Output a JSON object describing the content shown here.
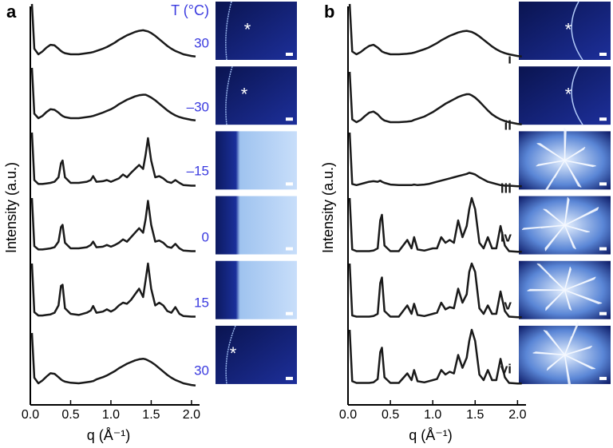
{
  "chart_data": [
    {
      "type": "line",
      "panel": "a",
      "header": "T (°C)",
      "xlabel": "q (Å⁻¹)",
      "ylabel": "Intensity (a.u.)",
      "xlim": [
        0,
        2.1
      ],
      "xticks": [
        {
          "value": 0,
          "label": "0.0"
        },
        {
          "value": 0.5,
          "label": "0.5"
        },
        {
          "value": 1,
          "label": "1.0"
        },
        {
          "value": 1.5,
          "label": "1.5"
        },
        {
          "value": 2,
          "label": "2.0"
        }
      ],
      "annotation": "*",
      "label_color": "#3a3adf",
      "color": "#1a1a1a",
      "x": [
        0.02,
        0.05,
        0.1,
        0.15,
        0.2,
        0.25,
        0.3,
        0.35,
        0.38,
        0.4,
        0.43,
        0.5,
        0.6,
        0.7,
        0.75,
        0.78,
        0.82,
        0.9,
        0.95,
        1.0,
        1.05,
        1.1,
        1.15,
        1.2,
        1.25,
        1.3,
        1.35,
        1.4,
        1.43,
        1.46,
        1.5,
        1.55,
        1.6,
        1.65,
        1.7,
        1.75,
        1.8,
        1.85,
        1.9,
        2.0,
        2.05
      ],
      "series": [
        {
          "name": "30",
          "values": [
            1.0,
            0.2,
            0.1,
            0.15,
            0.22,
            0.27,
            0.26,
            0.2,
            0.16,
            0.14,
            0.12,
            0.1,
            0.1,
            0.12,
            0.13,
            0.14,
            0.16,
            0.2,
            0.23,
            0.27,
            0.31,
            0.36,
            0.4,
            0.44,
            0.47,
            0.5,
            0.52,
            0.53,
            0.52,
            0.51,
            0.48,
            0.43,
            0.37,
            0.31,
            0.25,
            0.2,
            0.16,
            0.13,
            0.1,
            0.07,
            0.06
          ]
        },
        {
          "name": "–30",
          "values": [
            1.0,
            0.18,
            0.1,
            0.14,
            0.21,
            0.26,
            0.25,
            0.2,
            0.16,
            0.14,
            0.12,
            0.1,
            0.1,
            0.12,
            0.13,
            0.14,
            0.16,
            0.2,
            0.23,
            0.26,
            0.3,
            0.35,
            0.39,
            0.43,
            0.46,
            0.49,
            0.51,
            0.52,
            0.52,
            0.5,
            0.47,
            0.42,
            0.36,
            0.3,
            0.24,
            0.19,
            0.15,
            0.12,
            0.1,
            0.07,
            0.06
          ]
        },
        {
          "name": "–15",
          "values": [
            1.0,
            0.15,
            0.08,
            0.08,
            0.09,
            0.1,
            0.12,
            0.2,
            0.45,
            0.5,
            0.2,
            0.1,
            0.1,
            0.12,
            0.15,
            0.22,
            0.12,
            0.13,
            0.15,
            0.12,
            0.15,
            0.18,
            0.25,
            0.2,
            0.28,
            0.35,
            0.42,
            0.35,
            0.6,
            0.9,
            0.5,
            0.2,
            0.22,
            0.18,
            0.12,
            0.1,
            0.15,
            0.1,
            0.06,
            0.05,
            0.05
          ]
        },
        {
          "name": "0",
          "values": [
            1.0,
            0.14,
            0.08,
            0.08,
            0.09,
            0.1,
            0.12,
            0.22,
            0.48,
            0.52,
            0.2,
            0.1,
            0.1,
            0.12,
            0.16,
            0.22,
            0.12,
            0.13,
            0.16,
            0.13,
            0.16,
            0.2,
            0.26,
            0.22,
            0.3,
            0.38,
            0.46,
            0.38,
            0.62,
            0.95,
            0.52,
            0.22,
            0.24,
            0.2,
            0.13,
            0.11,
            0.18,
            0.1,
            0.06,
            0.05,
            0.05
          ]
        },
        {
          "name": "15",
          "values": [
            1.0,
            0.13,
            0.07,
            0.07,
            0.08,
            0.09,
            0.12,
            0.25,
            0.6,
            0.62,
            0.2,
            0.1,
            0.08,
            0.12,
            0.16,
            0.24,
            0.12,
            0.14,
            0.18,
            0.14,
            0.18,
            0.25,
            0.3,
            0.28,
            0.35,
            0.45,
            0.55,
            0.4,
            0.7,
            1.0,
            0.55,
            0.25,
            0.3,
            0.25,
            0.15,
            0.12,
            0.22,
            0.1,
            0.06,
            0.05,
            0.05
          ]
        },
        {
          "name": "30",
          "values": [
            1.0,
            0.2,
            0.1,
            0.15,
            0.22,
            0.28,
            0.27,
            0.21,
            0.17,
            0.15,
            0.13,
            0.11,
            0.1,
            0.12,
            0.13,
            0.14,
            0.17,
            0.21,
            0.24,
            0.28,
            0.32,
            0.37,
            0.41,
            0.45,
            0.48,
            0.51,
            0.53,
            0.54,
            0.53,
            0.51,
            0.48,
            0.43,
            0.37,
            0.31,
            0.25,
            0.2,
            0.16,
            0.13,
            0.1,
            0.07,
            0.06
          ]
        }
      ]
    },
    {
      "type": "line",
      "panel": "b",
      "xlabel": "q (Å⁻¹)",
      "ylabel": "Intensity (a.u.)",
      "xlim": [
        0,
        2.1
      ],
      "xticks": [
        {
          "value": 0,
          "label": "0.0"
        },
        {
          "value": 0.5,
          "label": "0.5"
        },
        {
          "value": 1,
          "label": "1.0"
        },
        {
          "value": 1.5,
          "label": "1.5"
        },
        {
          "value": 2,
          "label": "2.0"
        }
      ],
      "annotation": "*",
      "label_color": "#1a1a1a",
      "color": "#1a1a1a",
      "x": [
        0.02,
        0.05,
        0.1,
        0.15,
        0.2,
        0.25,
        0.3,
        0.35,
        0.38,
        0.4,
        0.43,
        0.5,
        0.6,
        0.7,
        0.75,
        0.78,
        0.82,
        0.9,
        0.95,
        1.0,
        1.05,
        1.1,
        1.15,
        1.2,
        1.25,
        1.3,
        1.35,
        1.4,
        1.43,
        1.46,
        1.5,
        1.55,
        1.6,
        1.65,
        1.7,
        1.75,
        1.8,
        1.85,
        1.9,
        2.0,
        2.05
      ],
      "series": [
        {
          "name": "i",
          "values": [
            1.0,
            0.15,
            0.1,
            0.14,
            0.2,
            0.25,
            0.27,
            0.22,
            0.18,
            0.15,
            0.13,
            0.1,
            0.1,
            0.11,
            0.12,
            0.13,
            0.15,
            0.19,
            0.22,
            0.26,
            0.3,
            0.35,
            0.39,
            0.43,
            0.46,
            0.49,
            0.51,
            0.52,
            0.51,
            0.5,
            0.47,
            0.42,
            0.36,
            0.3,
            0.24,
            0.19,
            0.15,
            0.12,
            0.1,
            0.07,
            0.06
          ]
        },
        {
          "name": "ii",
          "values": [
            1.0,
            0.15,
            0.1,
            0.14,
            0.21,
            0.27,
            0.29,
            0.24,
            0.19,
            0.16,
            0.13,
            0.1,
            0.1,
            0.11,
            0.12,
            0.14,
            0.16,
            0.2,
            0.24,
            0.28,
            0.33,
            0.38,
            0.43,
            0.47,
            0.51,
            0.55,
            0.58,
            0.6,
            0.6,
            0.58,
            0.54,
            0.47,
            0.39,
            0.31,
            0.24,
            0.19,
            0.15,
            0.12,
            0.1,
            0.07,
            0.06
          ]
        },
        {
          "name": "iii",
          "values": [
            1.0,
            0.08,
            0.06,
            0.08,
            0.1,
            0.12,
            0.13,
            0.12,
            0.14,
            0.12,
            0.1,
            0.07,
            0.06,
            0.06,
            0.06,
            0.07,
            0.06,
            0.07,
            0.08,
            0.1,
            0.12,
            0.14,
            0.16,
            0.18,
            0.2,
            0.22,
            0.24,
            0.26,
            0.28,
            0.27,
            0.25,
            0.2,
            0.16,
            0.12,
            0.1,
            0.08,
            0.06,
            0.05,
            0.05,
            0.04,
            0.04
          ]
        },
        {
          "name": "iv",
          "values": [
            1.0,
            0.08,
            0.05,
            0.05,
            0.05,
            0.05,
            0.06,
            0.1,
            0.6,
            0.7,
            0.15,
            0.05,
            0.05,
            0.25,
            0.1,
            0.3,
            0.08,
            0.06,
            0.08,
            0.1,
            0.1,
            0.3,
            0.2,
            0.25,
            0.2,
            0.6,
            0.3,
            0.5,
            0.8,
            1.0,
            0.8,
            0.2,
            0.1,
            0.3,
            0.1,
            0.1,
            0.5,
            0.15,
            0.05,
            0.04,
            0.04
          ]
        },
        {
          "name": "v",
          "values": [
            1.0,
            0.07,
            0.05,
            0.05,
            0.05,
            0.05,
            0.06,
            0.1,
            0.65,
            0.75,
            0.15,
            0.05,
            0.05,
            0.25,
            0.1,
            0.28,
            0.08,
            0.06,
            0.08,
            0.1,
            0.12,
            0.3,
            0.18,
            0.22,
            0.2,
            0.55,
            0.3,
            0.45,
            0.85,
            1.0,
            0.85,
            0.2,
            0.1,
            0.25,
            0.1,
            0.1,
            0.5,
            0.15,
            0.05,
            0.04,
            0.04
          ]
        },
        {
          "name": "vi",
          "values": [
            1.0,
            0.08,
            0.05,
            0.05,
            0.05,
            0.05,
            0.06,
            0.12,
            0.6,
            0.68,
            0.15,
            0.05,
            0.05,
            0.22,
            0.1,
            0.28,
            0.08,
            0.06,
            0.08,
            0.1,
            0.12,
            0.28,
            0.2,
            0.25,
            0.22,
            0.55,
            0.32,
            0.5,
            0.8,
            1.0,
            0.8,
            0.2,
            0.1,
            0.28,
            0.1,
            0.1,
            0.48,
            0.15,
            0.05,
            0.04,
            0.04
          ]
        }
      ]
    }
  ]
}
